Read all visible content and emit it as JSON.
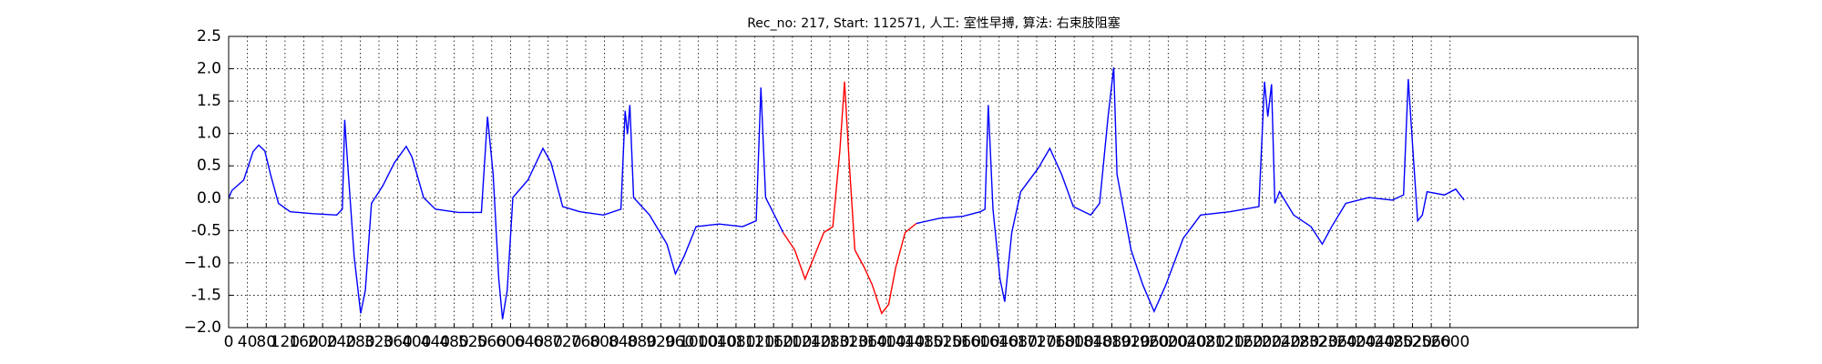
{
  "chart_data": {
    "type": "line",
    "title": "Rec_no: 217, Start: 112571, 人工: 室性早搏, 算法: 右束肢阻塞",
    "xlim": [
      0,
      3000
    ],
    "ylim": [
      -2,
      2.5
    ],
    "xticks": [
      0,
      40,
      80,
      120,
      160,
      200,
      240,
      280,
      320,
      360,
      400,
      440,
      480,
      520,
      560,
      600,
      640,
      680,
      720,
      760,
      800,
      840,
      880,
      920,
      960,
      1000,
      1040,
      1080,
      1120,
      1160,
      1200,
      1240,
      1280,
      1320,
      1360,
      1400,
      1440,
      1480,
      1520,
      1560,
      1600,
      1640,
      1680,
      1720,
      1760,
      1800,
      1840,
      1880,
      1920,
      1960,
      2000,
      2040,
      2080,
      2120,
      2160,
      2200,
      2240,
      2280,
      2320,
      2360,
      2400,
      2440,
      2480,
      2520,
      2560,
      2600
    ],
    "yticks": [
      {
        "value": -2,
        "label": "−2.0"
      },
      -1.5,
      {
        "value": -1,
        "label": "−1.0"
      },
      -0.5,
      {
        "value": 0,
        "label": "0.0"
      },
      0.5,
      {
        "value": 1,
        "label": "1.0"
      },
      1.5,
      {
        "value": 2,
        "label": "2.0"
      },
      2.5
    ],
    "grid": true,
    "series": [
      {
        "color": "#0000ff",
        "x": [
          0,
          7,
          32,
          52,
          64,
          77,
          89,
          106,
          131,
          180,
          230,
          242,
          247,
          254,
          267,
          281,
          291,
          304,
          328,
          353,
          378,
          390,
          415,
          440,
          489,
          538,
          551,
          563,
          575,
          583,
          593,
          605,
          637,
          669,
          686,
          711,
          748,
          798,
          835,
          844,
          849,
          854,
          862,
          896,
          933,
          951,
          970,
          995,
          1044,
          1094,
          1123,
          1133,
          1143,
          1168,
          1180
        ],
        "values": [
          0.0,
          0.12,
          0.28,
          0.72,
          0.82,
          0.73,
          0.37,
          -0.08,
          -0.21,
          -0.24,
          -0.26,
          -0.17,
          1.21,
          0.46,
          -0.89,
          -1.78,
          -1.42,
          -0.08,
          0.19,
          0.55,
          0.8,
          0.64,
          0.01,
          -0.17,
          -0.22,
          -0.22,
          1.26,
          0.37,
          -1.25,
          -1.87,
          -1.42,
          0.01,
          0.28,
          0.77,
          0.55,
          -0.13,
          -0.21,
          -0.26,
          -0.17,
          1.35,
          0.99,
          1.44,
          0.01,
          -0.26,
          -0.71,
          -1.17,
          -0.89,
          -0.44,
          -0.4,
          -0.44,
          -0.35,
          1.71,
          0.01,
          -0.35,
          -0.53
        ]
      },
      {
        "color": "#ff0000",
        "x": [
          1180,
          1205,
          1227,
          1242,
          1267,
          1286,
          1301,
          1311,
          1321,
          1333,
          1353,
          1370,
          1390,
          1405,
          1420,
          1440,
          1464
        ],
        "values": [
          -0.53,
          -0.8,
          -1.25,
          -0.98,
          -0.53,
          -0.44,
          0.73,
          1.8,
          0.55,
          -0.8,
          -1.07,
          -1.34,
          -1.78,
          -1.64,
          -1.07,
          -0.53,
          -0.39
        ]
      },
      {
        "color": "#0000ff",
        "x": [
          1464,
          1514,
          1563,
          1600,
          1610,
          1617,
          1627,
          1642,
          1652,
          1667,
          1686,
          1723,
          1748,
          1773,
          1798,
          1835,
          1854,
          1872,
          1884,
          1891,
          1921,
          1946,
          1970,
          1995,
          2032,
          2069,
          2131,
          2193,
          2205,
          2212,
          2220,
          2227,
          2237,
          2267,
          2304,
          2328,
          2348,
          2378,
          2427,
          2477,
          2501,
          2511,
          2521,
          2531,
          2541,
          2551,
          2588,
          2612,
          2630
        ],
        "values": [
          -0.39,
          -0.31,
          -0.28,
          -0.21,
          -0.17,
          1.44,
          -0.17,
          -1.25,
          -1.6,
          -0.53,
          0.1,
          0.46,
          0.77,
          0.37,
          -0.13,
          -0.26,
          -0.08,
          1.26,
          2.02,
          0.37,
          -0.8,
          -1.34,
          -1.75,
          -1.34,
          -0.62,
          -0.26,
          -0.21,
          -0.13,
          1.8,
          1.26,
          1.76,
          -0.08,
          0.1,
          -0.26,
          -0.44,
          -0.71,
          -0.44,
          -0.08,
          0.01,
          -0.03,
          0.05,
          1.84,
          0.73,
          -0.35,
          -0.26,
          0.1,
          0.05,
          0.14,
          -0.03
        ]
      }
    ]
  }
}
